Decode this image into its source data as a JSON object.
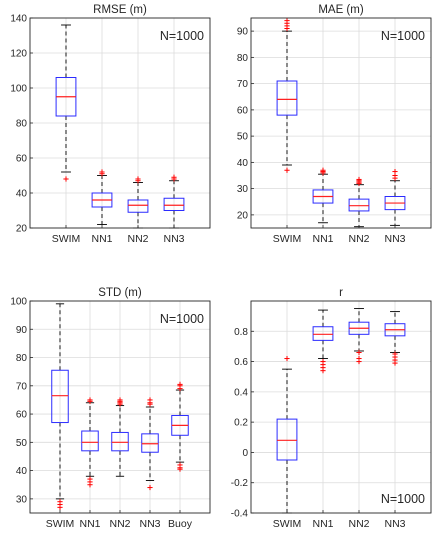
{
  "colors": {
    "box": "#2b2bff",
    "median": "#ff2020",
    "whisker": "#000000",
    "outlier": "#ff0000",
    "axis": "#262626",
    "grid": "#dcdcdc"
  },
  "chart_data": [
    {
      "type": "boxplot",
      "title": "RMSE (m)",
      "annotation": "N=1000",
      "annotation_position": "top-right",
      "grid": true,
      "ylim": [
        20,
        140
      ],
      "yticks": [
        20,
        40,
        60,
        80,
        100,
        120,
        140
      ],
      "categories": [
        "SWIM",
        "NN1",
        "NN2",
        "NN3"
      ],
      "boxes": [
        {
          "whisker_low": 52,
          "q1": 84,
          "median": 95,
          "q3": 106,
          "whisker_high": 136,
          "outliers": [
            48
          ]
        },
        {
          "whisker_low": 22,
          "q1": 32,
          "median": 36,
          "q3": 40,
          "whisker_high": 50,
          "outliers": [
            51,
            52
          ]
        },
        {
          "whisker_low": 20,
          "q1": 29,
          "median": 33,
          "q3": 36,
          "whisker_high": 46,
          "outliers": [
            47,
            48
          ]
        },
        {
          "whisker_low": 20,
          "q1": 30,
          "median": 33,
          "q3": 37,
          "whisker_high": 47,
          "outliers": [
            48,
            49
          ]
        }
      ]
    },
    {
      "type": "boxplot",
      "title": "MAE (m)",
      "annotation": "N=1000",
      "annotation_position": "top-right",
      "grid": true,
      "ylim": [
        15,
        95
      ],
      "yticks": [
        20,
        30,
        40,
        50,
        60,
        70,
        80,
        90
      ],
      "categories": [
        "SWIM",
        "NN1",
        "NN2",
        "NN3"
      ],
      "boxes": [
        {
          "whisker_low": 39,
          "q1": 58,
          "median": 64,
          "q3": 71,
          "whisker_high": 90,
          "outliers": [
            37,
            91,
            92,
            93,
            94
          ]
        },
        {
          "whisker_low": 17,
          "q1": 24.5,
          "median": 27,
          "q3": 29.5,
          "whisker_high": 35.5,
          "outliers": [
            36,
            36.5,
            37
          ]
        },
        {
          "whisker_low": 15.5,
          "q1": 21.5,
          "median": 23.5,
          "q3": 26,
          "whisker_high": 31.5,
          "outliers": [
            32,
            32.5,
            33,
            33.5
          ]
        },
        {
          "whisker_low": 16,
          "q1": 22,
          "median": 24.5,
          "q3": 27,
          "whisker_high": 33,
          "outliers": [
            34,
            35,
            36.5
          ]
        }
      ]
    },
    {
      "type": "boxplot",
      "title": "STD (m)",
      "annotation": "N=1000",
      "annotation_position": "top-right",
      "grid": true,
      "ylim": [
        25,
        100
      ],
      "yticks": [
        30,
        40,
        50,
        60,
        70,
        80,
        90,
        100
      ],
      "categories": [
        "SWIM",
        "NN1",
        "NN2",
        "NN3",
        "Buoy"
      ],
      "boxes": [
        {
          "whisker_low": 30,
          "q1": 57,
          "median": 66.5,
          "q3": 75.5,
          "whisker_high": 99,
          "outliers": [
            27,
            28,
            29
          ]
        },
        {
          "whisker_low": 38,
          "q1": 47,
          "median": 50,
          "q3": 54,
          "whisker_high": 64,
          "outliers": [
            35,
            36,
            37,
            64.5,
            65
          ]
        },
        {
          "whisker_low": 38,
          "q1": 47,
          "median": 50,
          "q3": 53.5,
          "whisker_high": 63,
          "outliers": [
            63.5,
            64,
            64.5,
            65
          ]
        },
        {
          "whisker_low": 36.5,
          "q1": 46.5,
          "median": 49.5,
          "q3": 53,
          "whisker_high": 62.5,
          "outliers": [
            34,
            63.5,
            64,
            65
          ]
        },
        {
          "whisker_low": 43,
          "q1": 52.5,
          "median": 56,
          "q3": 59.5,
          "whisker_high": 68.5,
          "outliers": [
            40.5,
            41,
            42,
            69,
            70,
            70.5
          ]
        }
      ]
    },
    {
      "type": "boxplot",
      "title": "r",
      "annotation": "N=1000",
      "annotation_position": "bottom-right",
      "grid": true,
      "ylim": [
        -0.4,
        1.0
      ],
      "yticks": [
        -0.4,
        -0.2,
        0,
        0.2,
        0.4,
        0.6,
        0.8
      ],
      "categories": [
        "SWIM",
        "NN1",
        "NN2",
        "NN3"
      ],
      "boxes": [
        {
          "whisker_low": -0.4,
          "q1": -0.05,
          "median": 0.08,
          "q3": 0.22,
          "whisker_high": 0.55,
          "outliers": [
            0.62
          ]
        },
        {
          "whisker_low": 0.62,
          "q1": 0.74,
          "median": 0.78,
          "q3": 0.83,
          "whisker_high": 0.94,
          "outliers": [
            0.54,
            0.56,
            0.58,
            0.6
          ]
        },
        {
          "whisker_low": 0.67,
          "q1": 0.78,
          "median": 0.82,
          "q3": 0.86,
          "whisker_high": 0.95,
          "outliers": [
            0.6,
            0.62,
            0.66
          ]
        },
        {
          "whisker_low": 0.66,
          "q1": 0.77,
          "median": 0.81,
          "q3": 0.85,
          "whisker_high": 0.93,
          "outliers": [
            0.59,
            0.61,
            0.63,
            0.65
          ]
        }
      ]
    }
  ]
}
